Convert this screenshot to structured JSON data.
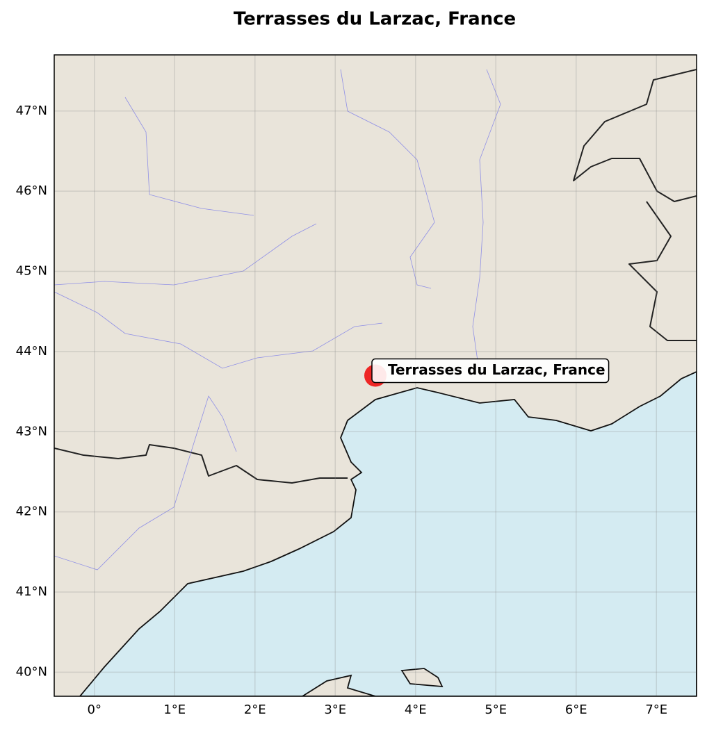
{
  "chart_data": {
    "type": "map",
    "title": "Terrasses du Larzac, France",
    "xlim": [
      -0.5,
      7.5
    ],
    "ylim": [
      39.7,
      47.7
    ],
    "xticks": [
      {
        "value": 0,
        "label": "0°"
      },
      {
        "value": 1,
        "label": "1°E"
      },
      {
        "value": 2,
        "label": "2°E"
      },
      {
        "value": 3,
        "label": "3°E"
      },
      {
        "value": 4,
        "label": "4°E"
      },
      {
        "value": 5,
        "label": "5°E"
      },
      {
        "value": 6,
        "label": "6°E"
      },
      {
        "value": 7,
        "label": "7°E"
      }
    ],
    "yticks": [
      {
        "value": 40,
        "label": "40°N"
      },
      {
        "value": 41,
        "label": "41°N"
      },
      {
        "value": 42,
        "label": "42°N"
      },
      {
        "value": 43,
        "label": "43°N"
      },
      {
        "value": 44,
        "label": "44°N"
      },
      {
        "value": 45,
        "label": "45°N"
      },
      {
        "value": 46,
        "label": "46°N"
      },
      {
        "value": 47,
        "label": "47°N"
      }
    ],
    "grid": true,
    "points": [
      {
        "lon": 3.5,
        "lat": 43.7,
        "label": "Terrasses du Larzac, France",
        "color": "#ee1111"
      }
    ]
  }
}
